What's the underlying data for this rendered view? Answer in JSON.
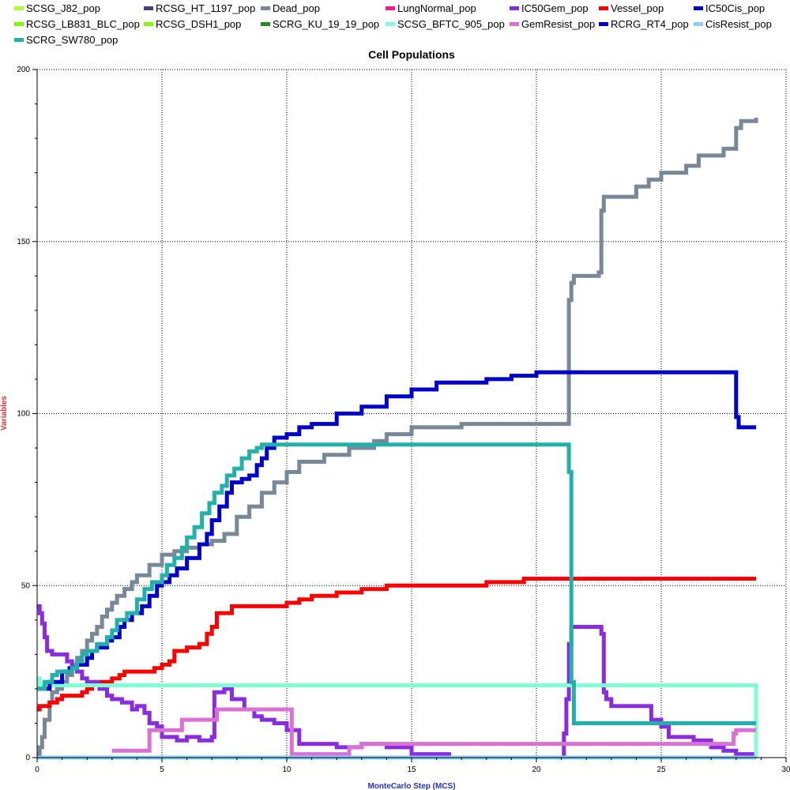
{
  "chart_data": {
    "type": "line",
    "title": "Cell Populations",
    "xlabel": "MonteCarlo Step (MCS)",
    "ylabel": "Variables",
    "xlim": [
      0,
      30
    ],
    "ylim": [
      0,
      200
    ],
    "xticks": [
      0,
      5,
      10,
      15,
      20,
      25,
      30
    ],
    "yticks": [
      0,
      50,
      100,
      150,
      200
    ],
    "grid": true,
    "legend_position": "top",
    "series": [
      {
        "name": "SCSG_J82_pop",
        "color": "#adff2f",
        "points": [
          [
            0,
            0
          ],
          [
            28.8,
            0
          ]
        ]
      },
      {
        "name": "RCSG_HT_1197_pop",
        "color": "#483d8b",
        "points": [
          [
            0,
            0
          ],
          [
            28.8,
            0
          ]
        ]
      },
      {
        "name": "Dead_pop",
        "color": "#778899",
        "points": [
          [
            0,
            1
          ],
          [
            0.1,
            3
          ],
          [
            0.2,
            6
          ],
          [
            0.3,
            11
          ],
          [
            0.5,
            16
          ],
          [
            0.6,
            19
          ],
          [
            0.8,
            20
          ],
          [
            1,
            22
          ],
          [
            1.2,
            24
          ],
          [
            1.4,
            27
          ],
          [
            1.6,
            29
          ],
          [
            1.8,
            31
          ],
          [
            2,
            34
          ],
          [
            2.2,
            36
          ],
          [
            2.4,
            38
          ],
          [
            2.6,
            41
          ],
          [
            2.8,
            43
          ],
          [
            3,
            45
          ],
          [
            3.2,
            47
          ],
          [
            3.5,
            49
          ],
          [
            3.8,
            51
          ],
          [
            4,
            53
          ],
          [
            4.5,
            56
          ],
          [
            5,
            59
          ],
          [
            5.5,
            60
          ],
          [
            6,
            61
          ],
          [
            6.5,
            62
          ],
          [
            7,
            63
          ],
          [
            7.5,
            65
          ],
          [
            8,
            70
          ],
          [
            8.5,
            73
          ],
          [
            9,
            77
          ],
          [
            9.5,
            80
          ],
          [
            10,
            83
          ],
          [
            10.5,
            86
          ],
          [
            11.5,
            88
          ],
          [
            12.5,
            90
          ],
          [
            13.5,
            92
          ],
          [
            14,
            94
          ],
          [
            15,
            96
          ],
          [
            17,
            97
          ],
          [
            21.2,
            97
          ],
          [
            21.3,
            106
          ],
          [
            21.3,
            133
          ],
          [
            21.4,
            138
          ],
          [
            21.5,
            140
          ],
          [
            22.5,
            141
          ],
          [
            22.6,
            159
          ],
          [
            22.7,
            163
          ],
          [
            24,
            166
          ],
          [
            24.5,
            168
          ],
          [
            25,
            170
          ],
          [
            26,
            172
          ],
          [
            26.5,
            175
          ],
          [
            27.5,
            177
          ],
          [
            28,
            183
          ],
          [
            28.2,
            185
          ],
          [
            28.8,
            186
          ]
        ]
      },
      {
        "name": "LungNormal_pop",
        "color": "#ff1493",
        "points": [
          [
            0,
            0
          ],
          [
            28.8,
            0
          ]
        ]
      },
      {
        "name": "IC50Gem_pop",
        "color": "#8a2be2",
        "points": [
          [
            0,
            44
          ],
          [
            0.1,
            42
          ],
          [
            0.2,
            39
          ],
          [
            0.3,
            35
          ],
          [
            0.4,
            31
          ],
          [
            0.6,
            30
          ],
          [
            1,
            30
          ],
          [
            1.2,
            28
          ],
          [
            1.4,
            26
          ],
          [
            1.6,
            25
          ],
          [
            1.8,
            23
          ],
          [
            2,
            22
          ],
          [
            2.5,
            20
          ],
          [
            2.8,
            18
          ],
          [
            3,
            17
          ],
          [
            3.4,
            16
          ],
          [
            3.8,
            14
          ],
          [
            4,
            15
          ],
          [
            4.3,
            13
          ],
          [
            4.5,
            10
          ],
          [
            4.8,
            9
          ],
          [
            5,
            6
          ],
          [
            5.6,
            5
          ],
          [
            6,
            6
          ],
          [
            6.5,
            5
          ],
          [
            7,
            6
          ],
          [
            7.1,
            19
          ],
          [
            7.5,
            20
          ],
          [
            7.8,
            17
          ],
          [
            8.3,
            14
          ],
          [
            8.7,
            12
          ],
          [
            9,
            11
          ],
          [
            9.5,
            10
          ],
          [
            10,
            8
          ],
          [
            10.5,
            4
          ],
          [
            12,
            3
          ],
          [
            13,
            4
          ],
          [
            14,
            3
          ],
          [
            15,
            1
          ],
          [
            16.5,
            0
          ],
          [
            21.1,
            7
          ],
          [
            21.2,
            17
          ],
          [
            21.3,
            33
          ],
          [
            21.4,
            38
          ],
          [
            22,
            38
          ],
          [
            22.6,
            36
          ],
          [
            22.7,
            19
          ],
          [
            22.8,
            17
          ],
          [
            23,
            15
          ],
          [
            24,
            15
          ],
          [
            24.6,
            11
          ],
          [
            25,
            9
          ],
          [
            25.3,
            6
          ],
          [
            26,
            6
          ],
          [
            26.3,
            5
          ],
          [
            27,
            3
          ],
          [
            27.5,
            2
          ],
          [
            28,
            1
          ],
          [
            28.8,
            1
          ]
        ]
      },
      {
        "name": "Vessel_pop",
        "color": "#ff0000",
        "points": [
          [
            0,
            14
          ],
          [
            0.1,
            15
          ],
          [
            0.5,
            16
          ],
          [
            0.8,
            17
          ],
          [
            1,
            18
          ],
          [
            1.8,
            19
          ],
          [
            2,
            20
          ],
          [
            2.2,
            21
          ],
          [
            2.6,
            22
          ],
          [
            3,
            23
          ],
          [
            3.3,
            24
          ],
          [
            3.5,
            25
          ],
          [
            4.7,
            26
          ],
          [
            5,
            27
          ],
          [
            5.3,
            28
          ],
          [
            5.5,
            31
          ],
          [
            6,
            32
          ],
          [
            6.5,
            33
          ],
          [
            6.8,
            36
          ],
          [
            7,
            38
          ],
          [
            7.2,
            42
          ],
          [
            7.8,
            44
          ],
          [
            9,
            44
          ],
          [
            10,
            45
          ],
          [
            10.5,
            46
          ],
          [
            11,
            47
          ],
          [
            12,
            48
          ],
          [
            13,
            49
          ],
          [
            14,
            50
          ],
          [
            18,
            51
          ],
          [
            19,
            51
          ],
          [
            19.5,
            52
          ],
          [
            28.8,
            52
          ]
        ]
      },
      {
        "name": "IC50Cis_pop",
        "color": "#0000cd",
        "points": [
          [
            0,
            0
          ],
          [
            28.8,
            0
          ]
        ]
      },
      {
        "name": "RCSG_LB831_BLC_pop",
        "color": "#7cfc00",
        "points": [
          [
            0,
            0
          ],
          [
            28.8,
            0
          ]
        ]
      },
      {
        "name": "RCSG_DSH1_pop",
        "color": "#7fff00",
        "points": [
          [
            0,
            0
          ],
          [
            28.8,
            0
          ]
        ]
      },
      {
        "name": "SCRG_KU_19_19_pop",
        "color": "#228b22",
        "points": [
          [
            0,
            0
          ],
          [
            28.8,
            0
          ]
        ]
      },
      {
        "name": "SCSG_BFTC_905_pop",
        "color": "#7fffd4",
        "points": [
          [
            0,
            23
          ],
          [
            0.1,
            21
          ],
          [
            0.3,
            21
          ],
          [
            28.8,
            0
          ]
        ]
      },
      {
        "name": "GemResist_pop",
        "color": "#da70d6",
        "points": [
          [
            3,
            2
          ],
          [
            4.2,
            2
          ],
          [
            4.5,
            8
          ],
          [
            5.5,
            8
          ],
          [
            5.8,
            11
          ],
          [
            7,
            11
          ],
          [
            7.2,
            14
          ],
          [
            7.7,
            14
          ],
          [
            10.2,
            1
          ],
          [
            12,
            1
          ],
          [
            12.5,
            3
          ],
          [
            13,
            4
          ],
          [
            14,
            4
          ],
          [
            27.9,
            7
          ],
          [
            28,
            8
          ],
          [
            28.8,
            8
          ]
        ]
      },
      {
        "name": "RCRG_RT4_pop",
        "color": "#0000cd",
        "points": [
          [
            0,
            20
          ],
          [
            0.5,
            22
          ],
          [
            1,
            25
          ],
          [
            1.3,
            26
          ],
          [
            1.6,
            27
          ],
          [
            2,
            29
          ],
          [
            2.2,
            31
          ],
          [
            2.4,
            32
          ],
          [
            2.8,
            34
          ],
          [
            3,
            35
          ],
          [
            3.3,
            38
          ],
          [
            3.5,
            40
          ],
          [
            3.8,
            42
          ],
          [
            4.2,
            44
          ],
          [
            4.5,
            47
          ],
          [
            4.8,
            50
          ],
          [
            5,
            51
          ],
          [
            5.3,
            53
          ],
          [
            5.6,
            55
          ],
          [
            6,
            58
          ],
          [
            6.5,
            62
          ],
          [
            6.8,
            65
          ],
          [
            7,
            69
          ],
          [
            7.3,
            73
          ],
          [
            7.6,
            77
          ],
          [
            7.8,
            80
          ],
          [
            8.2,
            81
          ],
          [
            8.5,
            82
          ],
          [
            8.8,
            85
          ],
          [
            9,
            87
          ],
          [
            9.2,
            90
          ],
          [
            9.5,
            93
          ],
          [
            10,
            94
          ],
          [
            10.5,
            96
          ],
          [
            11,
            97
          ],
          [
            12,
            100
          ],
          [
            13,
            102
          ],
          [
            14,
            105
          ],
          [
            15,
            107
          ],
          [
            16,
            109
          ],
          [
            17,
            109
          ],
          [
            18,
            110
          ],
          [
            19,
            111
          ],
          [
            20,
            112
          ],
          [
            21,
            112
          ],
          [
            28,
            112
          ],
          [
            28,
            99
          ],
          [
            28.1,
            96
          ],
          [
            28.8,
            96
          ]
        ]
      },
      {
        "name": "CisResist_pop",
        "color": "#87cefa",
        "points": [
          [
            0,
            0
          ],
          [
            28.8,
            0
          ]
        ]
      },
      {
        "name": "SCRG_SW780_pop",
        "color": "#20b2aa",
        "points": [
          [
            0,
            20
          ],
          [
            0.3,
            22
          ],
          [
            0.6,
            24
          ],
          [
            0.8,
            25
          ],
          [
            1.4,
            26
          ],
          [
            1.6,
            28
          ],
          [
            1.8,
            30
          ],
          [
            2,
            31
          ],
          [
            2.4,
            33
          ],
          [
            2.8,
            35
          ],
          [
            3,
            37
          ],
          [
            3.2,
            40
          ],
          [
            3.6,
            42
          ],
          [
            4,
            46
          ],
          [
            4.3,
            49
          ],
          [
            4.6,
            51
          ],
          [
            5,
            53
          ],
          [
            5.2,
            56
          ],
          [
            5.5,
            58
          ],
          [
            5.8,
            61
          ],
          [
            6,
            64
          ],
          [
            6.3,
            67
          ],
          [
            6.6,
            71
          ],
          [
            6.9,
            74
          ],
          [
            7.1,
            77
          ],
          [
            7.4,
            79
          ],
          [
            7.6,
            82
          ],
          [
            7.9,
            84
          ],
          [
            8.2,
            87
          ],
          [
            8.5,
            89
          ],
          [
            8.8,
            90
          ],
          [
            9,
            91
          ],
          [
            21.3,
            91
          ],
          [
            21.3,
            83
          ],
          [
            21.4,
            75
          ],
          [
            21.4,
            22
          ],
          [
            21.5,
            13
          ],
          [
            21.5,
            10
          ],
          [
            28.8,
            10
          ]
        ]
      }
    ]
  }
}
